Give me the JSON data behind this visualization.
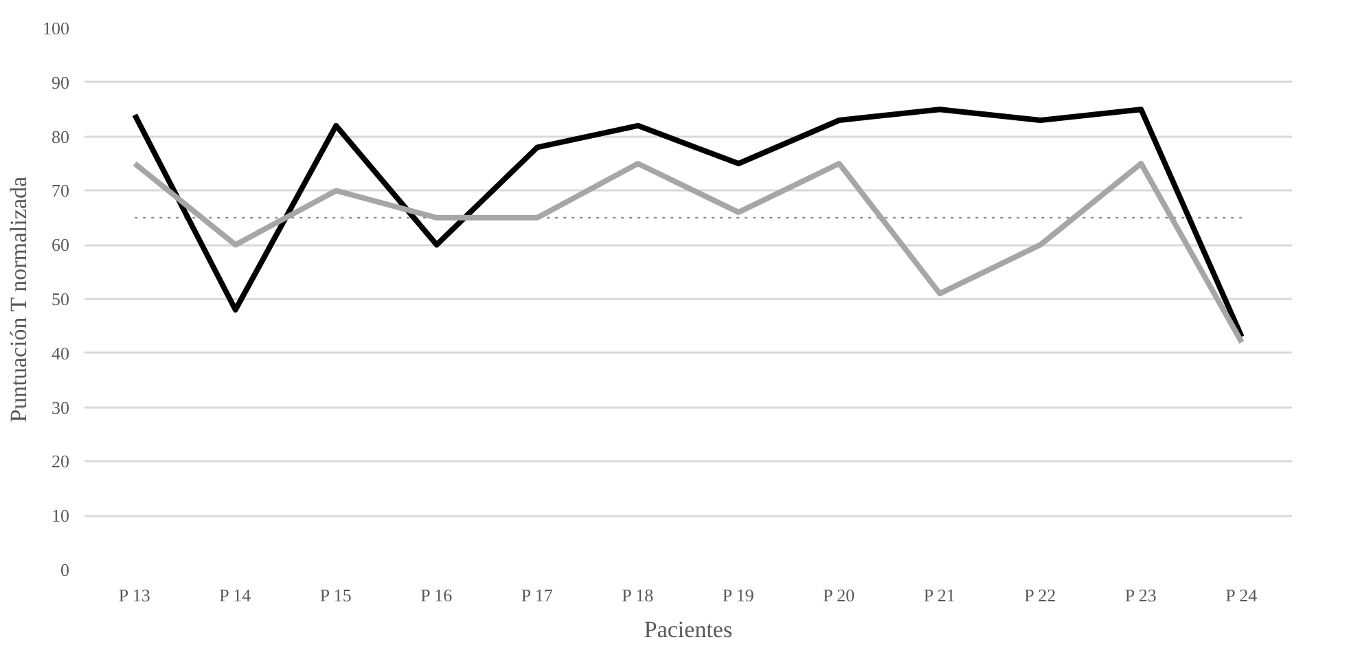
{
  "chart_data": {
    "type": "line",
    "xlabel": "Pacientes",
    "ylabel": "Puntuación T normalizada",
    "categories": [
      "P 13",
      "P 14",
      "P 15",
      "P 16",
      "P 17",
      "P 18",
      "P 19",
      "P 20",
      "P 21",
      "P 22",
      "P 23",
      "P 24"
    ],
    "series": [
      {
        "color": "#000000",
        "values": [
          84,
          48,
          82,
          60,
          78,
          82,
          75,
          83,
          85,
          83,
          85,
          43
        ]
      },
      {
        "color": "#a6a6a6",
        "values": [
          75,
          60,
          70,
          65,
          65,
          75,
          66,
          75,
          51,
          60,
          75,
          42
        ]
      }
    ],
    "ylim": [
      0,
      100
    ],
    "yticks": [
      0,
      10,
      20,
      30,
      40,
      50,
      60,
      70,
      80,
      90,
      100
    ],
    "grid": "y",
    "ref_lines": [
      {
        "axis": "y",
        "value": 65,
        "color": "#7f7f7f",
        "line_style": "dotted"
      }
    ],
    "line_style": "solid",
    "marker": "none"
  }
}
